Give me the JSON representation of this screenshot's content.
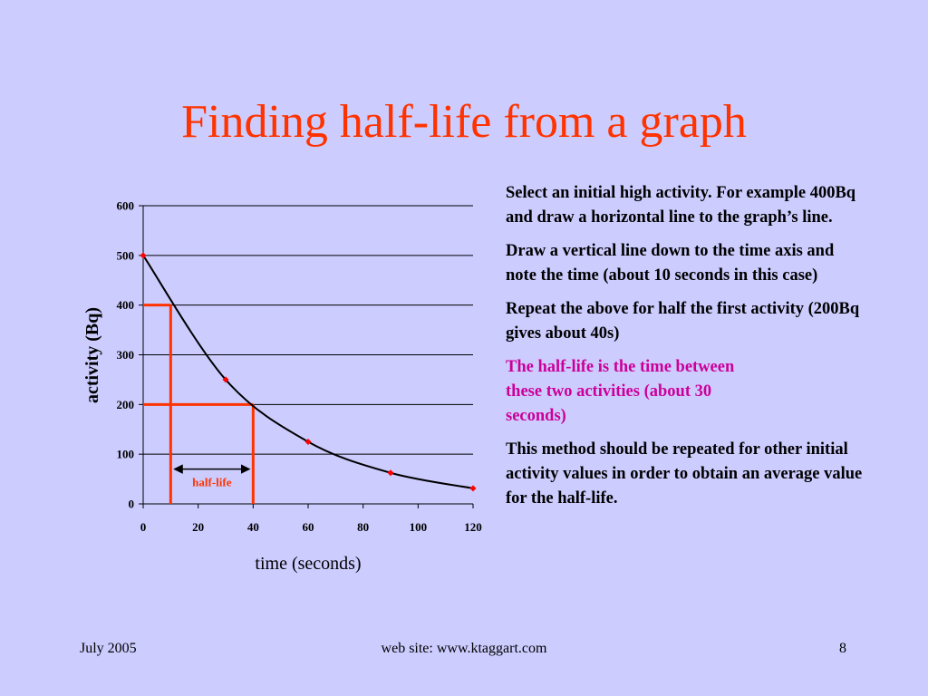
{
  "slide": {
    "title": "Finding half-life from a graph",
    "background": "#ccccff",
    "title_color": "#ff3300",
    "highlight_color": "#cc0099"
  },
  "instructions": [
    {
      "text": "Select an initial high activity. For example 400Bq and draw a horizontal line to the graph’s line.",
      "highlight": false
    },
    {
      "text": "Draw a vertical line down to the time axis and note the time (about 10 seconds in this case)",
      "highlight": false
    },
    {
      "text": "Repeat the above for half the first activity (200Bq gives about 40s)",
      "highlight": false
    },
    {
      "text": "The half-life is the time between these two activities (about 30 seconds)",
      "highlight": true
    },
    {
      "text": "This method should be repeated for other initial activity values in order to obtain an average value for the half-life.",
      "highlight": false
    }
  ],
  "footer": {
    "date": "July 2005",
    "site": "web site: www.ktaggart.com",
    "page": "8"
  },
  "chart_data": {
    "type": "line",
    "xlabel": "time (seconds)",
    "ylabel": "activity (Bq)",
    "xlim": [
      0,
      120
    ],
    "ylim": [
      0,
      600
    ],
    "x_ticks": [
      0,
      20,
      40,
      60,
      80,
      100,
      120
    ],
    "y_ticks": [
      0,
      100,
      200,
      300,
      400,
      500,
      600
    ],
    "grid": "horizontal",
    "legend": "none",
    "series": [
      {
        "x": [
          0,
          30,
          60,
          90,
          120
        ],
        "y": [
          500,
          250,
          125,
          62.5,
          31.25
        ],
        "curve": "smooth",
        "line_color": "#000000",
        "marker_color": "#ff0000"
      }
    ],
    "annotations": [
      {
        "type": "hline",
        "y": 400,
        "x_from": 0,
        "x_to": 10,
        "color": "#ff3300"
      },
      {
        "type": "vline",
        "x": 10,
        "y_from": 0,
        "y_to": 400,
        "color": "#ff3300"
      },
      {
        "type": "hline",
        "y": 200,
        "x_from": 0,
        "x_to": 40,
        "color": "#ff3300"
      },
      {
        "type": "vline",
        "x": 40,
        "y_from": 0,
        "y_to": 200,
        "color": "#ff3300"
      },
      {
        "type": "arrow",
        "x_from": 10,
        "x_to": 40,
        "y": 70,
        "label": "half-life",
        "label_color": "#ff3300"
      }
    ]
  }
}
